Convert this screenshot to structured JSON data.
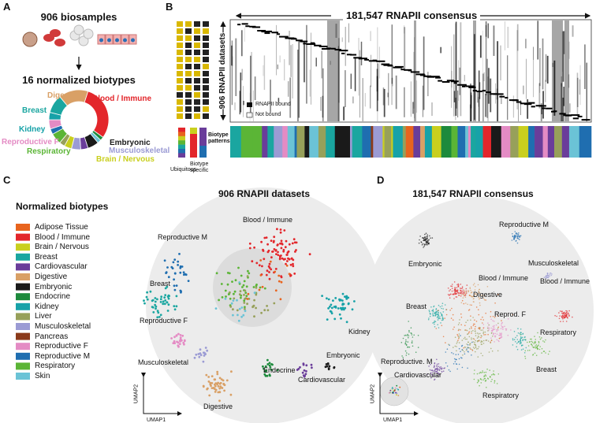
{
  "panels": [
    "A",
    "B",
    "C",
    "D"
  ],
  "panel_a": {
    "biosamples": "906 biosamples",
    "biotypes_title": "16 normalized biotypes",
    "donut_labels": [
      "Digestive",
      "Blood / Immune",
      "Breast",
      "Kidney",
      "Embryonic",
      "Reproductive F",
      "Musculoskeletal",
      "Respiratory",
      "Brain / Nervous"
    ]
  },
  "panel_b": {
    "consensus": "181,547 RNAPII consensus",
    "datasets": "906 RNAPII datasets",
    "legend": [
      "RNAPII bound",
      "Not bound"
    ],
    "biotype_patterns": "Biotype patterns",
    "ubiquitous": "Ubiquitous",
    "biotype_specific": "Biotype specific"
  },
  "panel_c": {
    "legend_title": "Normalized biotypes",
    "legend": [
      {
        "name": "Adipose Tissue",
        "color": "#e8641e"
      },
      {
        "name": "Blood / Immune",
        "color": "#e3262b"
      },
      {
        "name": "Brain / Nervous",
        "color": "#c9cf1e"
      },
      {
        "name": "Breast",
        "color": "#1aa6a0"
      },
      {
        "name": "Cardiovascular",
        "color": "#6a3d9a"
      },
      {
        "name": "Digestive",
        "color": "#d9a066"
      },
      {
        "name": "Embryonic",
        "color": "#1a1a1a"
      },
      {
        "name": "Endocrine",
        "color": "#1d8a3c"
      },
      {
        "name": "Kidney",
        "color": "#17a2a8"
      },
      {
        "name": "Liver",
        "color": "#97a05a"
      },
      {
        "name": "Musculoskeletal",
        "color": "#9b9bd4"
      },
      {
        "name": "Pancreas",
        "color": "#8b3a1a"
      },
      {
        "name": "Reproductive F",
        "color": "#e48bc4"
      },
      {
        "name": "Reproductive M",
        "color": "#1f6eb0"
      },
      {
        "name": "Respiratory",
        "color": "#5bb536"
      },
      {
        "name": "Skin",
        "color": "#6bc3d6"
      }
    ],
    "title": "906 RNAPII datasets",
    "labels": [
      "Blood / Immune",
      "Reproductive M",
      "Breast",
      "Reproductive F",
      "Kidney",
      "Musculoskeletal",
      "Endocrine",
      "Embryonic",
      "Cardiovascular",
      "Digestive"
    ],
    "x_axis": "UMAP1",
    "y_axis": "UMAP2"
  },
  "panel_d": {
    "title": "181,547 RNAPII consensus",
    "labels": [
      "Reproductive M",
      "Embryonic",
      "Musculoskeletal",
      "Blood / Immune",
      "Digestive",
      "Blood / Immune",
      "Breast",
      "Reprod. F",
      "Respiratory",
      "Reproductive. M",
      "Breast",
      "Cardiovascular",
      "Respiratory"
    ],
    "x_axis": "UMAP1",
    "y_axis": "UMAP2"
  }
}
